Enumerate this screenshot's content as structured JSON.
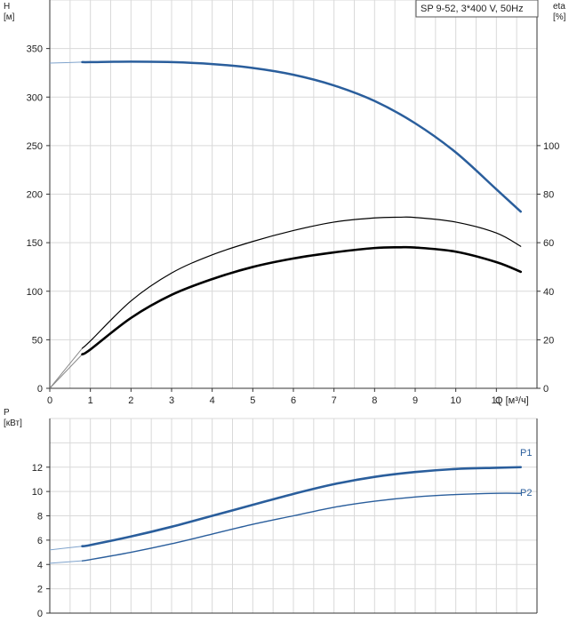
{
  "chart_data": [
    {
      "type": "line",
      "title": "SP 9-52, 3*400 V, 50Hz",
      "xlabel": "Q [м³/ч]",
      "ylabel_top": "H",
      "ylabel_unit": "[м]",
      "y2label_top": "eta",
      "y2label_unit": "[%]",
      "xlim": [
        0,
        12
      ],
      "ylim": [
        0,
        400
      ],
      "y2lim": [
        0,
        160
      ],
      "x_ticks": [
        "0",
        "1",
        "2",
        "3",
        "4",
        "5",
        "6",
        "7",
        "8",
        "9",
        "10",
        "11"
      ],
      "y_ticks": [
        "0",
        "50",
        "100",
        "150",
        "200",
        "250",
        "300",
        "350"
      ],
      "y2_ticks": [
        "0",
        "20",
        "40",
        "60",
        "80",
        "100"
      ],
      "grid": true,
      "series": [
        {
          "axis": "left",
          "color": "#2a5e9c",
          "x": [
            0,
            0.8,
            1,
            2,
            3,
            4,
            5,
            6,
            7,
            8,
            9,
            10,
            11,
            11.6
          ],
          "y": [
            335,
            336,
            336,
            336.5,
            336,
            334,
            330,
            323,
            312,
            296,
            273,
            243,
            205,
            182
          ],
          "extrapolated_until": 0.8
        },
        {
          "axis": "right",
          "color": "#000000",
          "x": [
            0,
            0.8,
            1,
            2,
            3,
            4,
            5,
            6,
            7,
            8,
            8.6,
            9,
            10,
            11,
            11.6
          ],
          "y": [
            0,
            16.5,
            19.5,
            36,
            47.5,
            55,
            60.5,
            65,
            68.5,
            70.2,
            70.5,
            70.4,
            68.5,
            64,
            58.5
          ],
          "extrapolated_until": 0.8
        },
        {
          "axis": "right",
          "color": "#000000",
          "x": [
            0,
            0.8,
            1,
            2,
            3,
            4,
            5,
            6,
            7,
            8,
            8.6,
            9,
            10,
            11,
            11.6
          ],
          "y": [
            0,
            14,
            16,
            29,
            38.5,
            45,
            50,
            53.5,
            56,
            57.8,
            58.1,
            58,
            56.3,
            52,
            48
          ],
          "extrapolated_until": 0.8
        }
      ]
    },
    {
      "type": "line",
      "ylabel_top": "P",
      "ylabel_unit": "[кВт]",
      "xlim": [
        0,
        12
      ],
      "ylim": [
        0,
        16
      ],
      "y_ticks": [
        "0",
        "2",
        "4",
        "6",
        "8",
        "10",
        "12"
      ],
      "grid": true,
      "series": [
        {
          "name": "P1",
          "color": "#2a5e9c",
          "x": [
            0,
            0.8,
            1,
            2,
            3,
            4,
            5,
            6,
            7,
            8,
            9,
            10,
            11,
            11.6
          ],
          "y": [
            5.2,
            5.5,
            5.6,
            6.3,
            7.1,
            8.0,
            8.9,
            9.8,
            10.6,
            11.2,
            11.6,
            11.85,
            11.95,
            12.0
          ],
          "extrapolated_until": 0.8
        },
        {
          "name": "P2",
          "color": "#2a5e9c",
          "x": [
            0,
            0.8,
            1,
            2,
            3,
            4,
            5,
            6,
            7,
            8,
            9,
            10,
            11,
            11.6
          ],
          "y": [
            4.1,
            4.3,
            4.4,
            5.0,
            5.7,
            6.5,
            7.3,
            8.0,
            8.7,
            9.2,
            9.55,
            9.75,
            9.85,
            9.85
          ],
          "extrapolated_until": 0.8
        }
      ]
    }
  ]
}
